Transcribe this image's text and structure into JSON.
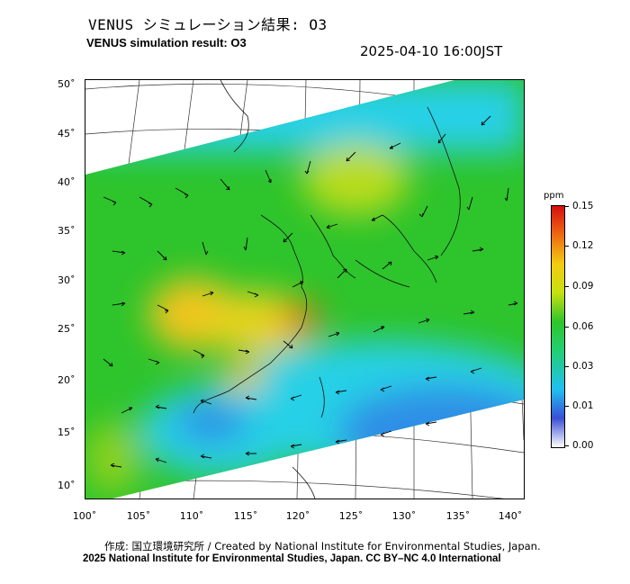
{
  "header": {
    "title_jp": "VENUS シミュレーション結果: O3",
    "title_en": "VENUS simulation result: O3",
    "timestamp": "2025-04-10 16:00JST"
  },
  "map": {
    "lat_labels": [
      "50˚",
      "45˚",
      "40˚",
      "35˚",
      "30˚",
      "25˚",
      "20˚",
      "15˚",
      "10˚"
    ],
    "lon_labels": [
      "100˚",
      "105˚",
      "110˚",
      "115˚",
      "120˚",
      "125˚",
      "130˚",
      "135˚",
      "140˚"
    ],
    "field_colors": {
      "high": "#f2c41a",
      "peak": "#ee6a12",
      "mid": "#2ec42c",
      "low": "#27d0e6",
      "lowest": "#2f8ee6"
    }
  },
  "colorbar": {
    "unit": "ppm",
    "ticks": [
      "0.15",
      "0.12",
      "0.09",
      "0.06",
      "0.03",
      "0.01",
      "0.00"
    ]
  },
  "footer": {
    "credit_line1": "作成: 国立環境研究所 / Created by National Institute for Environmental Studies, Japan.",
    "credit_line2": "2025 National Institute for Environmental Studies, Japan. CC BY–NC 4.0 International"
  }
}
